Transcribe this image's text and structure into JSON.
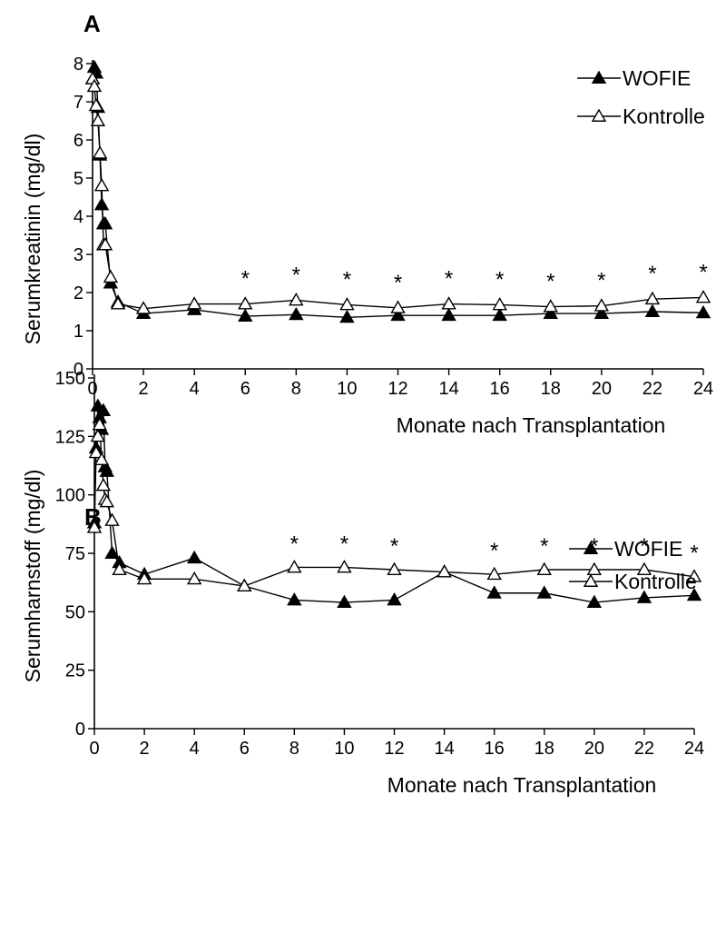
{
  "chart_data": [
    {
      "panel": "A",
      "type": "line",
      "xlabel": "Monate nach Transplantation",
      "ylabel": "Serumkreatinin (mg/dl)",
      "xlim": [
        0,
        24
      ],
      "ylim": [
        0,
        8
      ],
      "xticks": [
        0,
        2,
        4,
        6,
        8,
        10,
        12,
        14,
        16,
        18,
        20,
        22,
        24
      ],
      "yticks": [
        0,
        1,
        2,
        3,
        4,
        5,
        6,
        7,
        8
      ],
      "legend_position": "top-right",
      "series": [
        {
          "name": "WOFIE",
          "marker": "filled-triangle",
          "x": [
            0,
            0.07,
            0.14,
            0.21,
            0.29,
            0.36,
            0.43,
            0.5,
            0.71,
            1,
            2,
            4,
            6,
            8,
            10,
            12,
            14,
            16,
            18,
            20,
            22,
            24
          ],
          "y": [
            7.6,
            7.9,
            7.75,
            6.85,
            5.6,
            4.3,
            3.8,
            3.8,
            2.25,
            1.75,
            1.45,
            1.55,
            1.38,
            1.42,
            1.35,
            1.4,
            1.4,
            1.4,
            1.45,
            1.45,
            1.5,
            1.47
          ]
        },
        {
          "name": "Kontrolle",
          "marker": "open-triangle",
          "x": [
            0,
            0.07,
            0.14,
            0.21,
            0.29,
            0.36,
            0.43,
            0.5,
            0.71,
            1,
            2,
            4,
            6,
            8,
            10,
            12,
            14,
            16,
            18,
            20,
            22,
            24
          ],
          "y": [
            7.6,
            7.4,
            6.9,
            6.5,
            5.65,
            4.8,
            3.25,
            3.25,
            2.4,
            1.7,
            1.58,
            1.7,
            1.7,
            1.8,
            1.68,
            1.6,
            1.7,
            1.68,
            1.63,
            1.65,
            1.83,
            1.87
          ]
        }
      ],
      "significance_markers": {
        "symbol": "*",
        "x": [
          6,
          8,
          10,
          12,
          14,
          16,
          18,
          20,
          22,
          24
        ]
      }
    },
    {
      "panel": "B",
      "type": "line",
      "xlabel": "Monate nach Transplantation",
      "ylabel": "Serumharnstoff (mg/dl)",
      "xlim": [
        0,
        24
      ],
      "ylim": [
        0,
        150
      ],
      "xticks": [
        0,
        2,
        4,
        6,
        8,
        10,
        12,
        14,
        16,
        18,
        20,
        22,
        24
      ],
      "yticks": [
        0,
        25,
        50,
        75,
        100,
        125,
        150
      ],
      "legend_position": "top-right",
      "series": [
        {
          "name": "WOFIE",
          "marker": "filled-triangle",
          "x": [
            0,
            0.07,
            0.14,
            0.21,
            0.29,
            0.36,
            0.43,
            0.5,
            0.71,
            1,
            2,
            4,
            6,
            8,
            10,
            12,
            14,
            16,
            18,
            20,
            22,
            24
          ],
          "y": [
            88,
            120,
            138,
            133,
            128,
            136,
            112,
            110,
            75,
            71,
            66,
            73,
            61,
            55,
            54,
            55,
            67,
            58,
            58,
            54,
            56,
            57
          ]
        },
        {
          "name": "Kontrolle",
          "marker": "open-triangle",
          "x": [
            0,
            0.07,
            0.14,
            0.21,
            0.29,
            0.36,
            0.43,
            0.5,
            0.71,
            1,
            2,
            4,
            6,
            8,
            10,
            12,
            14,
            16,
            18,
            20,
            22,
            24
          ],
          "y": [
            86,
            118,
            125,
            130,
            115,
            104,
            98,
            97,
            89,
            68,
            64,
            64,
            61,
            69,
            69,
            68,
            67,
            66,
            68,
            68,
            68,
            65
          ]
        }
      ],
      "significance_markers": {
        "symbol": "*",
        "x": [
          8,
          10,
          12,
          16,
          18,
          20,
          22,
          24
        ]
      }
    }
  ]
}
